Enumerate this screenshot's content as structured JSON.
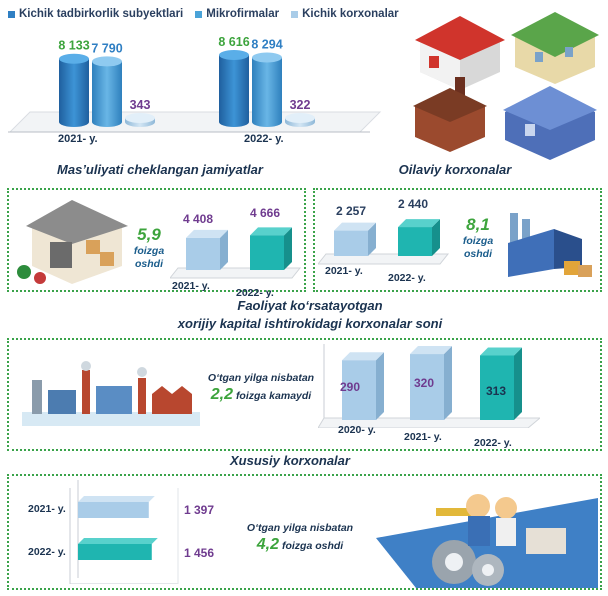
{
  "colors": {
    "dark_blue": "#2f7fc3",
    "mid_blue": "#4aa3d8",
    "light_blue": "#a9cce8",
    "teal": "#1fb5b0",
    "green": "#3da43d",
    "purple": "#6f3b8f",
    "navy_text": "#1b3350"
  },
  "chart_data": [
    {
      "id": "top",
      "type": "bar",
      "legend": [
        "Kichik tadbirkorlik subyektlari",
        "Mikrofirmalar",
        "Kichik korxonalar"
      ],
      "categories": [
        "2021- y.",
        "2022- y."
      ],
      "series": [
        {
          "name": "Kichik tadbirkorlik subyektlari",
          "values": [
            8133,
            8616
          ],
          "labels": [
            "8 133",
            "8 616"
          ]
        },
        {
          "name": "Mikrofirmalar",
          "values": [
            7790,
            8294
          ],
          "labels": [
            "7 790",
            "8 294"
          ]
        },
        {
          "name": "Kichik korxonalar",
          "values": [
            343,
            322
          ],
          "labels": [
            "343",
            "322"
          ]
        }
      ]
    },
    {
      "id": "mchj",
      "type": "bar",
      "title": "Mas’uliyati cheklangan jamiyatlar",
      "categories": [
        "2021- y.",
        "2022- y."
      ],
      "values": [
        4408,
        4666
      ],
      "labels": [
        "4 408",
        "4 666"
      ],
      "change": {
        "value": "5,9",
        "text": "foizga oshdi"
      }
    },
    {
      "id": "oilaviy",
      "type": "bar",
      "title": "Oilaviy korxonalar",
      "categories": [
        "2021- y.",
        "2022- y."
      ],
      "values": [
        2257,
        2440
      ],
      "labels": [
        "2 257",
        "2 440"
      ],
      "change": {
        "value": "8,1",
        "text": "foizga oshdi"
      }
    },
    {
      "id": "xorijiy",
      "type": "bar",
      "title": "Faoliyat ko‘rsatayotgan xorijiy kapital ishtirokidagi korxonalar soni",
      "title_line1": "Faoliyat ko‘rsatayotgan",
      "title_line2": "xorijiy kapital ishtirokidagi korxonalar soni",
      "categories": [
        "2020- y.",
        "2021- y.",
        "2022- y."
      ],
      "values": [
        290,
        320,
        313
      ],
      "labels": [
        "290",
        "320",
        "313"
      ],
      "change": {
        "prefix": "O‘tgan yilga nisbatan",
        "value": "2,2",
        "text": "foizga kamaydi"
      }
    },
    {
      "id": "xususiy",
      "type": "bar",
      "orientation": "horizontal",
      "title": "Xususiy korxonalar",
      "categories": [
        "2021- y.",
        "2022- y."
      ],
      "values": [
        1397,
        1456
      ],
      "labels": [
        "1 397",
        "1 456"
      ],
      "change": {
        "prefix": "O‘tgan yilga nisbatan",
        "value": "4,2",
        "text": "foizga oshdi"
      }
    }
  ]
}
